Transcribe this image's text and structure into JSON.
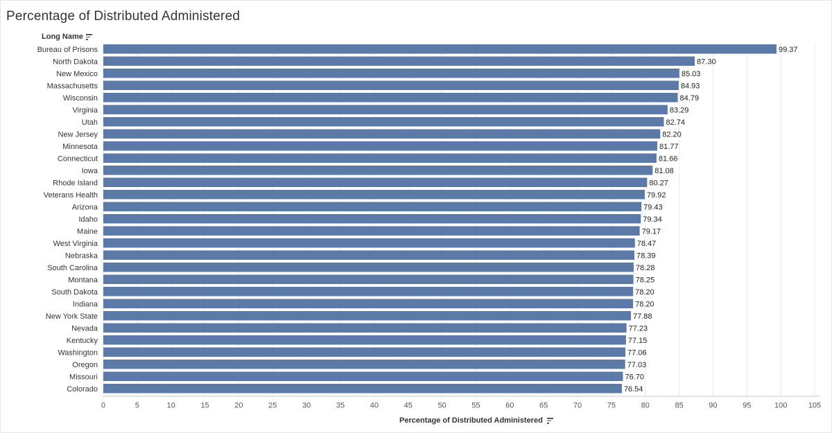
{
  "title": "Percentage of Distributed Administered",
  "row_header": "Long Name",
  "x_axis_title": "Percentage of Distributed Administered",
  "colors": {
    "bar": "#5b7aa8",
    "grid": "#e8e8e8",
    "axis": "#999999"
  },
  "chart_data": {
    "type": "bar",
    "orientation": "horizontal",
    "xlabel": "Percentage of Distributed Administered",
    "ylabel": "Long Name",
    "xlim": [
      0,
      105
    ],
    "xticks": [
      0,
      5,
      10,
      15,
      20,
      25,
      30,
      35,
      40,
      45,
      50,
      55,
      60,
      65,
      70,
      75,
      80,
      85,
      90,
      95,
      100,
      105
    ],
    "grid": "vertical",
    "categories": [
      "Bureau of Prisons",
      "North Dakota",
      "New Mexico",
      "Massachusetts",
      "Wisconsin",
      "Virginia",
      "Utah",
      "New Jersey",
      "Minnesota",
      "Connecticut",
      "Iowa",
      "Rhode Island",
      "Veterans Health",
      "Arizona",
      "Idaho",
      "Maine",
      "West Virginia",
      "Nebraska",
      "South Carolina",
      "Montana",
      "South Dakota",
      "Indiana",
      "New York State",
      "Nevada",
      "Kentucky",
      "Washington",
      "Oregon",
      "Missouri",
      "Colorado"
    ],
    "values": [
      99.37,
      87.3,
      85.03,
      84.93,
      84.79,
      83.29,
      82.74,
      82.2,
      81.77,
      81.66,
      81.08,
      80.27,
      79.92,
      79.43,
      79.34,
      79.17,
      78.47,
      78.39,
      78.28,
      78.25,
      78.2,
      78.2,
      77.88,
      77.23,
      77.15,
      77.06,
      77.03,
      76.7,
      76.54
    ],
    "value_labels": [
      "99.37",
      "87.30",
      "85.03",
      "84.93",
      "84.79",
      "83.29",
      "82.74",
      "82.20",
      "81.77",
      "81.66",
      "81.08",
      "80.27",
      "79.92",
      "79.43",
      "79.34",
      "79.17",
      "78.47",
      "78.39",
      "78.28",
      "78.25",
      "78.20",
      "78.20",
      "77.88",
      "77.23",
      "77.15",
      "77.06",
      "77.03",
      "76.70",
      "76.54"
    ]
  }
}
